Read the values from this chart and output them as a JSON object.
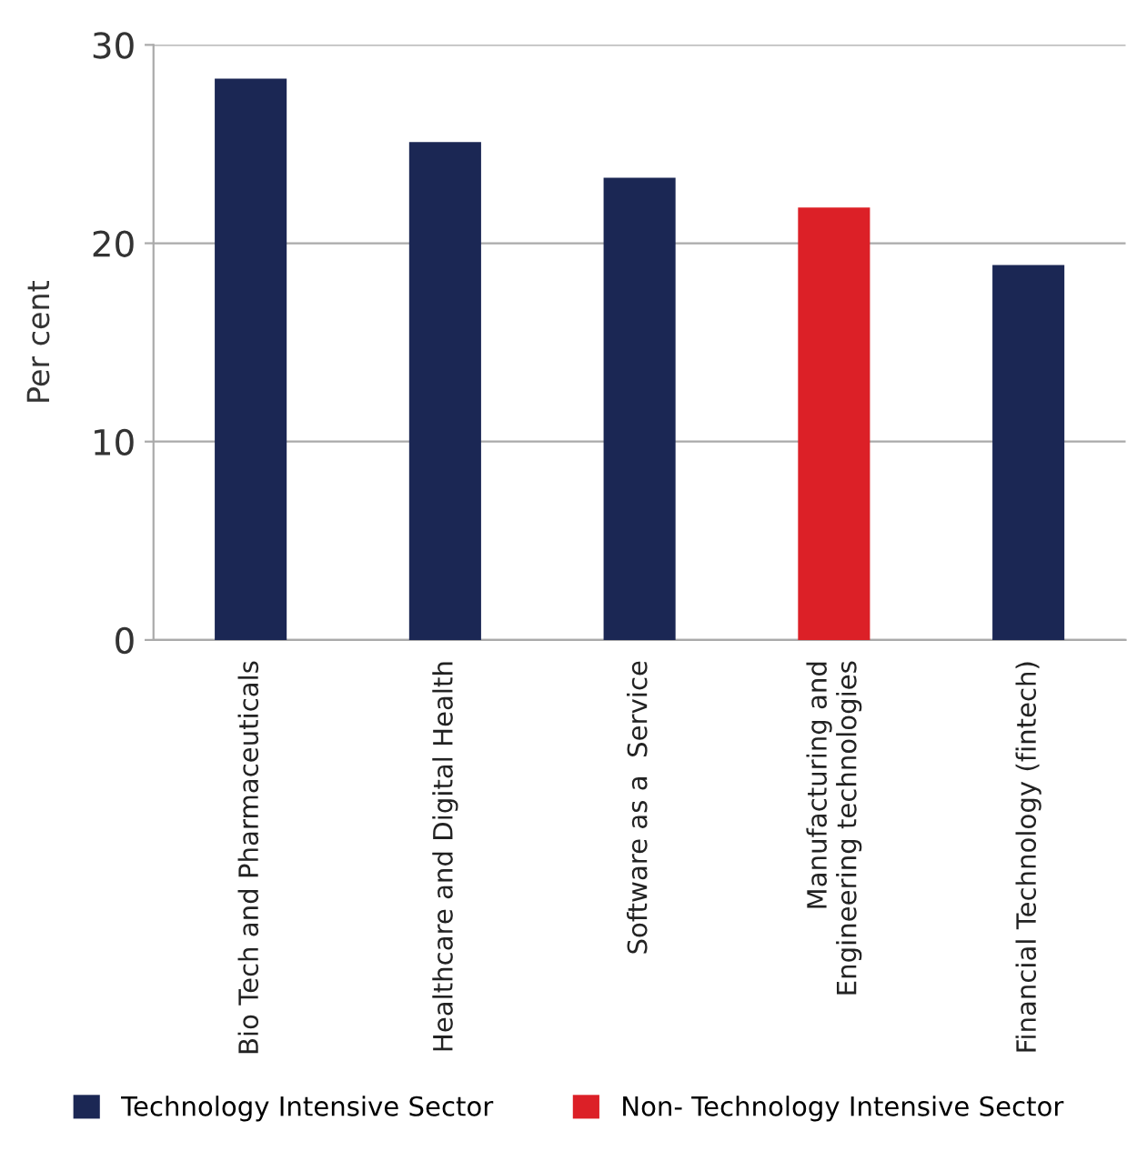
{
  "chart_data": {
    "type": "bar",
    "ylabel": "Per cent",
    "categories": [
      "Bio Tech and Pharmaceuticals",
      "Healthcare and Digital Health",
      "Software as a  Service",
      "Manufacturing and\nEngineering technologies",
      "Financial Technology (fintech)"
    ],
    "series": [
      {
        "name": "Technology Intensive Sector",
        "color": "#1b2754",
        "values": [
          28.3,
          25.1,
          23.3,
          null,
          18.9
        ]
      },
      {
        "name": "Non- Technology Intensive Sector",
        "color": "#dc2027",
        "values": [
          null,
          null,
          null,
          21.8,
          null
        ]
      }
    ],
    "ylim": [
      0,
      30
    ],
    "yticks": [
      0,
      10,
      20,
      30
    ],
    "grid": "y",
    "legend": "bottom"
  }
}
